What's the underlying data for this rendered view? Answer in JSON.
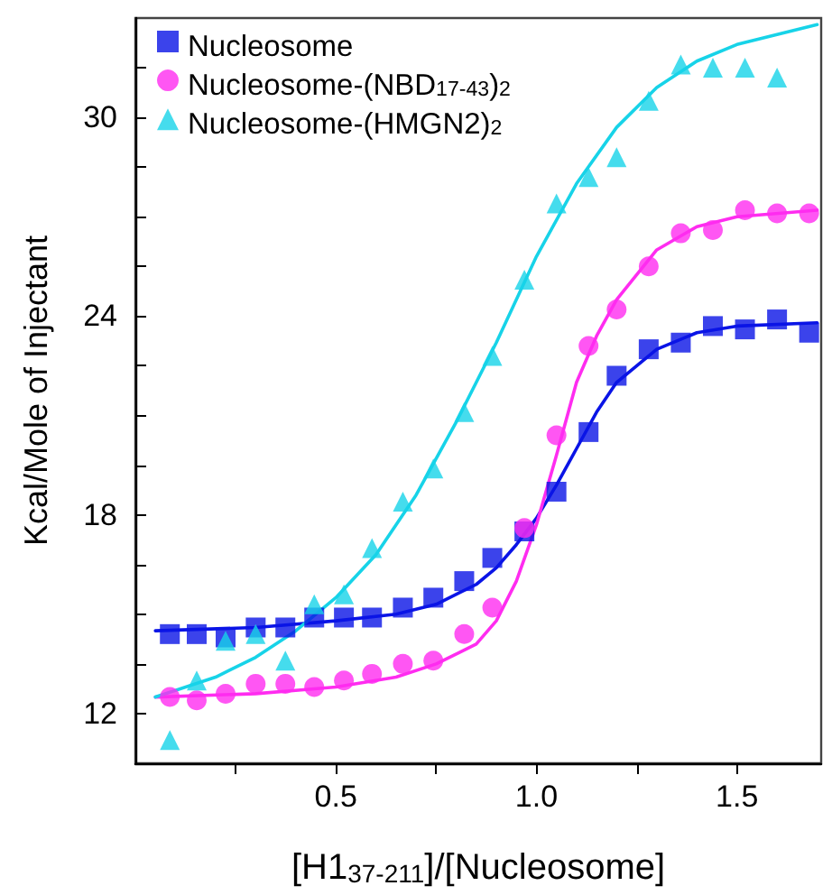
{
  "chart_data": {
    "type": "scatter",
    "xlabel": "[H1$_{37-211}$]/[Nucleosome]",
    "ylabel": "Kcal/Mole of Injectant",
    "xlim": [
      0,
      1.71
    ],
    "ylim": [
      10.5,
      33
    ],
    "xticks": [
      {
        "value": 0.25,
        "label": null
      },
      0.5,
      {
        "value": 0.75,
        "label": null
      },
      {
        "value": 1,
        "label": "1.0"
      },
      {
        "value": 1.25,
        "label": null
      },
      1.5
    ],
    "yticks": [
      12,
      {
        "value": 13.5,
        "label": null
      },
      {
        "value": 15,
        "label": null
      },
      {
        "value": 16.5,
        "label": null
      },
      18,
      {
        "value": 19.5,
        "label": null
      },
      {
        "value": 21,
        "label": null
      },
      {
        "value": 22.5,
        "label": null
      },
      24,
      {
        "value": 25.5,
        "label": null
      },
      {
        "value": 27,
        "label": null
      },
      {
        "value": 28.5,
        "label": null
      },
      30,
      {
        "value": 31.5,
        "label": null
      }
    ],
    "legend": "top left",
    "grid": false,
    "series": [
      {
        "name": "Nucleosome",
        "marker": "square",
        "color": "#0a14e6",
        "x": [
          0.086,
          0.153,
          0.225,
          0.3,
          0.374,
          0.446,
          0.52,
          0.59,
          0.667,
          0.743,
          0.82,
          0.89,
          0.97,
          1.05,
          1.13,
          1.2,
          1.28,
          1.36,
          1.44,
          1.52,
          1.6,
          1.68
        ],
        "values": [
          14.4,
          14.4,
          14.3,
          14.6,
          14.6,
          14.9,
          14.9,
          14.9,
          15.2,
          15.5,
          16.0,
          16.7,
          17.5,
          18.7,
          20.5,
          22.2,
          23.0,
          23.2,
          23.7,
          23.6,
          23.9,
          23.5
        ]
      },
      {
        "name": "Nucleosome-(NBD$_{17-43}$)$_{2}$",
        "marker": "circle",
        "color": "#ff2cf0",
        "x": [
          0.086,
          0.153,
          0.225,
          0.3,
          0.374,
          0.446,
          0.52,
          0.59,
          0.667,
          0.743,
          0.82,
          0.89,
          0.97,
          1.05,
          1.13,
          1.2,
          1.28,
          1.36,
          1.44,
          1.52,
          1.6,
          1.68
        ],
        "values": [
          12.5,
          12.4,
          12.6,
          12.9,
          12.9,
          12.8,
          13.0,
          13.2,
          13.5,
          13.6,
          14.4,
          15.2,
          17.6,
          20.4,
          23.1,
          24.2,
          25.5,
          26.5,
          26.6,
          27.2,
          27.1,
          27.1
        ]
      },
      {
        "name": "Nucleosome-(HMGN2)$_{2}$",
        "marker": "triangle",
        "color": "#17d3e8",
        "x": [
          0.086,
          0.153,
          0.225,
          0.3,
          0.374,
          0.446,
          0.52,
          0.59,
          0.667,
          0.743,
          0.82,
          0.89,
          0.97,
          1.05,
          1.13,
          1.2,
          1.28,
          1.36,
          1.44,
          1.52,
          1.6
        ],
        "values": [
          11.2,
          13.0,
          14.2,
          14.4,
          13.6,
          15.3,
          15.6,
          17.0,
          18.4,
          19.4,
          21.1,
          22.8,
          25.1,
          27.4,
          28.2,
          28.8,
          30.5,
          31.6,
          31.5,
          31.5,
          31.2
        ]
      },
      {
        "type": "line",
        "marker": "none",
        "line_style": "solid",
        "color": "#0a14e6",
        "x": [
          0.05,
          0.3,
          0.5,
          0.65,
          0.75,
          0.85,
          0.9,
          0.95,
          1.0,
          1.05,
          1.1,
          1.15,
          1.2,
          1.3,
          1.4,
          1.5,
          1.7
        ],
        "values": [
          14.5,
          14.6,
          14.8,
          15.0,
          15.3,
          15.9,
          16.4,
          17.1,
          17.9,
          18.9,
          20.0,
          21.1,
          22.0,
          23.0,
          23.5,
          23.7,
          23.8
        ]
      },
      {
        "type": "line",
        "marker": "none",
        "line_style": "solid",
        "color": "#ff2cf0",
        "x": [
          0.05,
          0.3,
          0.5,
          0.65,
          0.75,
          0.85,
          0.9,
          0.95,
          1.0,
          1.05,
          1.1,
          1.15,
          1.2,
          1.3,
          1.4,
          1.5,
          1.7
        ],
        "values": [
          12.5,
          12.6,
          12.8,
          13.1,
          13.5,
          14.1,
          14.8,
          16.0,
          17.7,
          19.8,
          22.0,
          23.4,
          24.5,
          26.0,
          26.7,
          27.0,
          27.2
        ]
      },
      {
        "type": "line",
        "marker": "none",
        "line_style": "solid",
        "color": "#17d3e8",
        "x": [
          0.05,
          0.2,
          0.3,
          0.4,
          0.5,
          0.6,
          0.7,
          0.8,
          0.9,
          1.0,
          1.1,
          1.2,
          1.3,
          1.4,
          1.5,
          1.7
        ],
        "values": [
          12.5,
          13.1,
          13.7,
          14.5,
          15.5,
          16.8,
          18.6,
          20.8,
          23.2,
          25.8,
          28.0,
          29.7,
          30.9,
          31.7,
          32.2,
          32.8
        ]
      }
    ]
  }
}
